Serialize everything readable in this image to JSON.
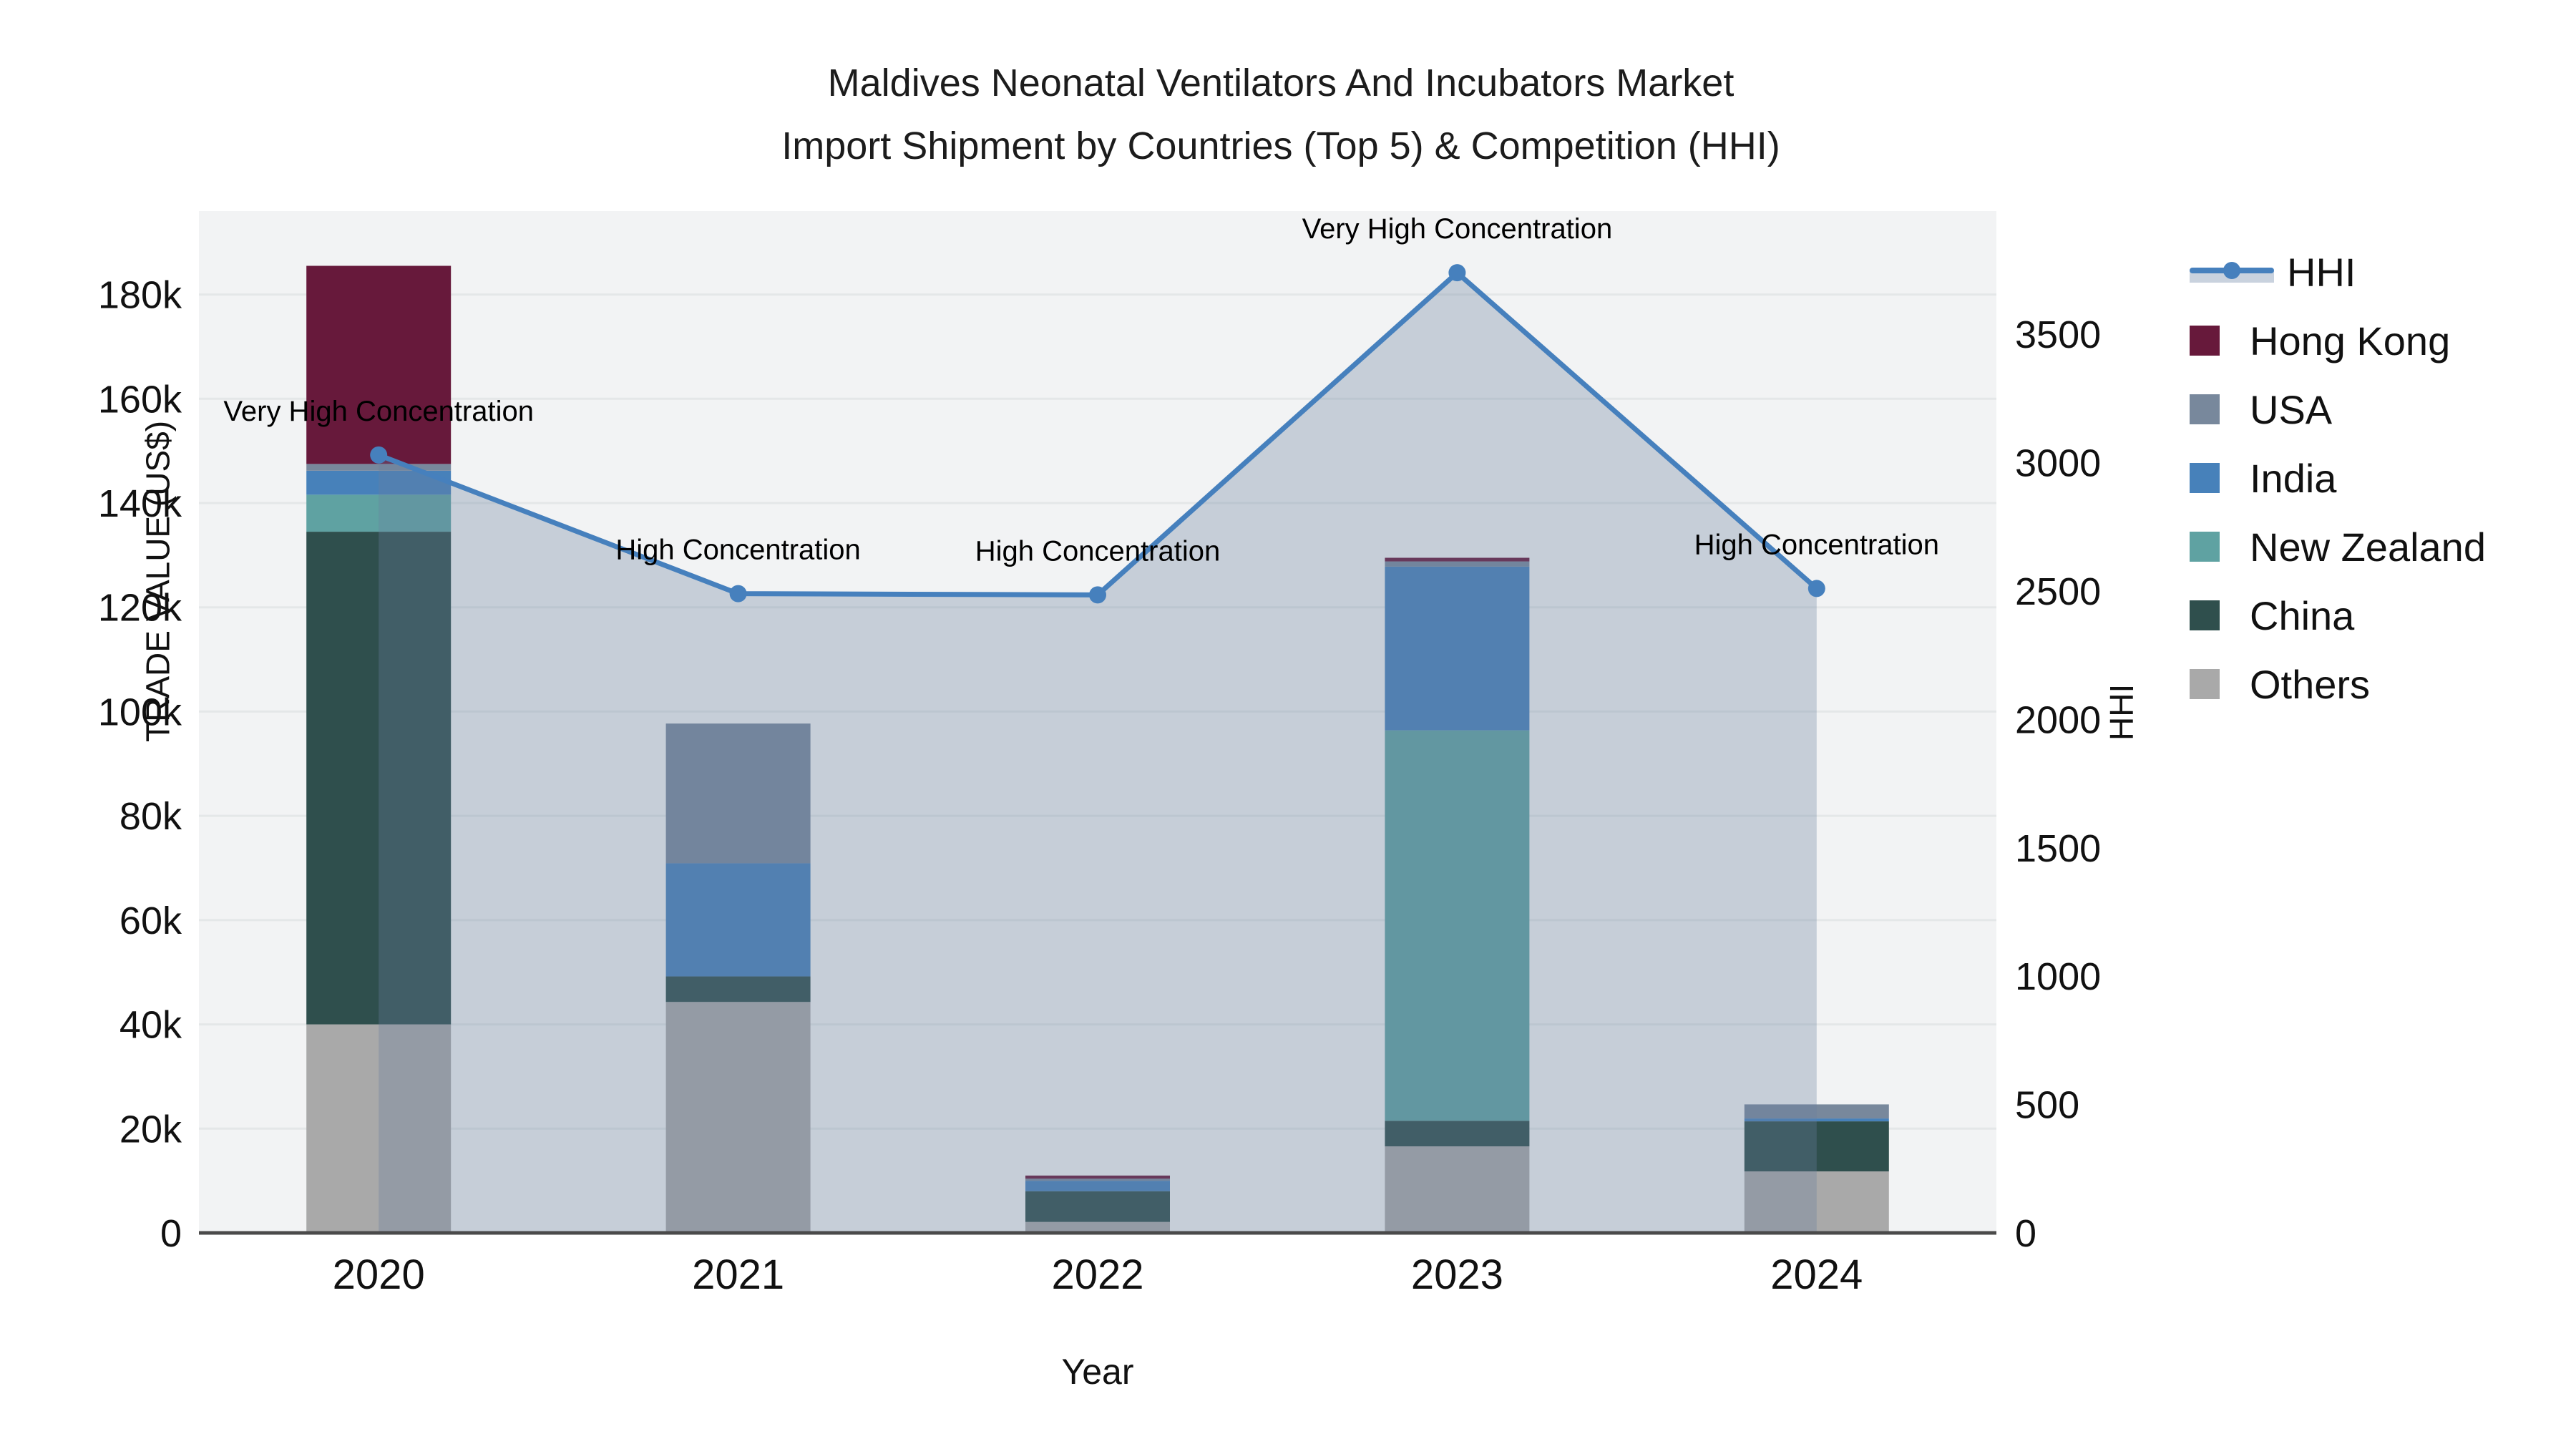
{
  "title": {
    "line1": "Maldives Neonatal Ventilators And Incubators Market",
    "line2": "Import Shipment by Countries (Top 5) & Competition (HHI)"
  },
  "axes": {
    "left": {
      "title": "TRADE VALUE (US$)",
      "tick_values": [
        0,
        20000,
        40000,
        60000,
        80000,
        100000,
        120000,
        140000,
        160000,
        180000
      ],
      "tick_labels": [
        "0",
        "20k",
        "40k",
        "60k",
        "80k",
        "100k",
        "120k",
        "140k",
        "160k",
        "180k"
      ],
      "max": 196000
    },
    "right": {
      "title": "HHI",
      "tick_values": [
        0,
        500,
        1000,
        1500,
        2000,
        2500,
        3000,
        3500
      ],
      "tick_labels": [
        "0",
        "500",
        "1000",
        "1500",
        "2000",
        "2500",
        "3000",
        "3500"
      ],
      "max": 3980
    },
    "x": {
      "title": "Year",
      "categories": [
        "2020",
        "2021",
        "2022",
        "2023",
        "2024"
      ]
    }
  },
  "legend": [
    {
      "label": "HHI",
      "type": "line",
      "color": "#4680bd",
      "band": "#c9d2de"
    },
    {
      "label": "Hong Kong",
      "type": "box",
      "color": "#67193b"
    },
    {
      "label": "USA",
      "type": "box",
      "color": "#78889c"
    },
    {
      "label": "India",
      "type": "box",
      "color": "#4781ba"
    },
    {
      "label": "New Zealand",
      "type": "box",
      "color": "#5fa2a2"
    },
    {
      "label": "China",
      "type": "box",
      "color": "#2f4f4d"
    },
    {
      "label": "Others",
      "type": "box",
      "color": "#a9a9a9"
    }
  ],
  "chart_data": {
    "type": "bar",
    "subtype": "stacked-bars-with-line",
    "categories": [
      "2020",
      "2021",
      "2022",
      "2023",
      "2024"
    ],
    "series": [
      {
        "name": "Others",
        "color": "#a9a9a9",
        "values": [
          40000,
          44300,
          2100,
          16600,
          11800
        ]
      },
      {
        "name": "China",
        "color": "#2f4f4d",
        "values": [
          94500,
          4900,
          5900,
          4900,
          9600
        ]
      },
      {
        "name": "New Zealand",
        "color": "#5fa2a2",
        "values": [
          7100,
          0,
          0,
          74900,
          0
        ]
      },
      {
        "name": "India",
        "color": "#4781ba",
        "values": [
          4600,
          21700,
          2000,
          31400,
          550
        ]
      },
      {
        "name": "USA",
        "color": "#78889c",
        "values": [
          1300,
          26800,
          400,
          1000,
          2700
        ]
      },
      {
        "name": "Hong Kong",
        "color": "#67193b",
        "values": [
          38000,
          0,
          600,
          700,
          0
        ]
      }
    ],
    "line_series": {
      "name": "HHI",
      "axis": "right",
      "color": "#4680bd",
      "fill": "rgba(106,128,158,0.32)",
      "values": [
        3030,
        2490,
        2485,
        3740,
        2510
      ]
    },
    "annotations": [
      "Very High Concentration",
      "High Concentration",
      "High Concentration",
      "Very High Concentration",
      "High Concentration"
    ],
    "ylabel": "TRADE VALUE (US$)",
    "ylabel_right": "HHI",
    "xlabel": "Year",
    "ylim_left": [
      0,
      196000
    ],
    "ylim_right": [
      0,
      3980
    ],
    "grid": true,
    "legend_position": "right",
    "plot_bg": "#f2f3f4",
    "grid_color": "#e4e7e8",
    "axis_line_color": "#4a4a4a"
  }
}
